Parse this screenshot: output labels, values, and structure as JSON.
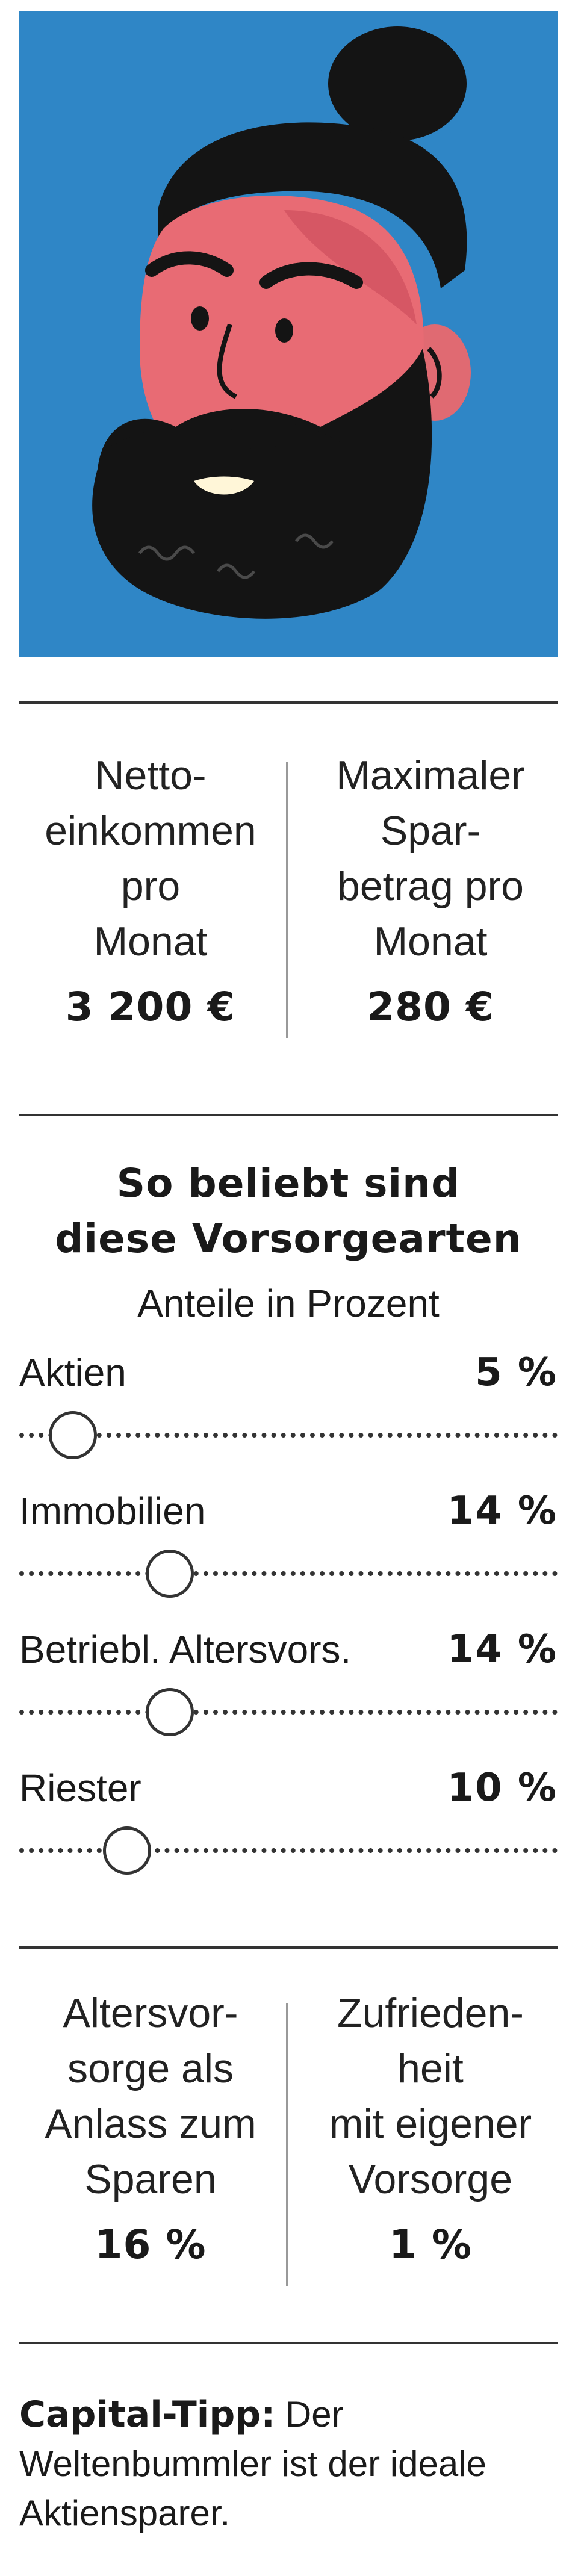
{
  "illustration": {
    "icon": "bearded-man-portrait",
    "background": "#2f86c6"
  },
  "stats_top": [
    {
      "label": "Netto-\neinkommen\npro\nMonat",
      "value": "3 200 €"
    },
    {
      "label": "Maximaler\nSpar-\nbetrag pro\nMonat",
      "value": "280 €"
    }
  ],
  "section": {
    "title_line1": "So beliebt sind",
    "title_line2": "diese Vorsorgearten",
    "subtitle": "Anteile in Prozent"
  },
  "chart_data": {
    "type": "bar",
    "categories": [
      "Aktien",
      "Immobilien",
      "Betriebl. Altersvors.",
      "Riester"
    ],
    "values": [
      5,
      14,
      14,
      10
    ],
    "value_labels": [
      "5 %",
      "14 %",
      "14 %",
      "10 %"
    ],
    "title": "So beliebt sind diese Vorsorgearten",
    "subtitle": "Anteile in Prozent",
    "xlim": [
      0,
      100
    ]
  },
  "stats_bottom": [
    {
      "label": "Altersvor-\nsorge als\nAnlass zum\nSparen",
      "value": "16 %"
    },
    {
      "label": "Zufrieden-\nheit\nmit eigener\nVorsorge",
      "value": "1 %"
    }
  ],
  "tip": {
    "bold": "Capital-Tipp:",
    "text": " Der Weltenbummler ist der ideale Aktiensparer."
  }
}
